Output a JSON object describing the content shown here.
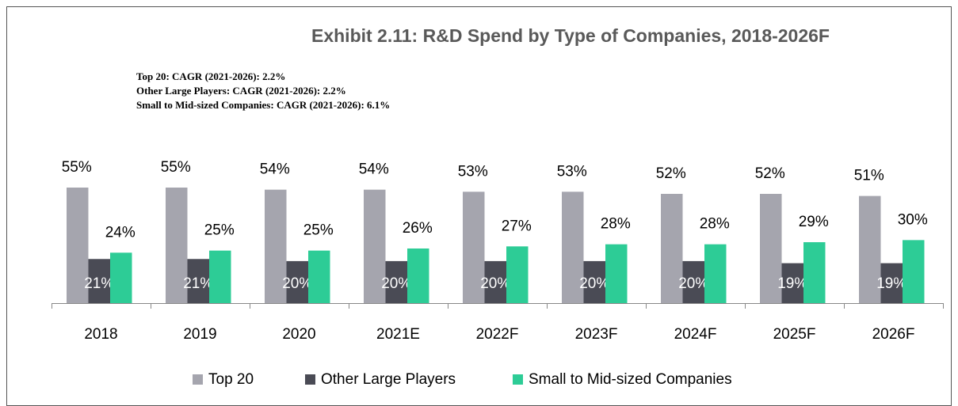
{
  "chart_data": {
    "type": "bar",
    "title": "Exhibit 2.11: R&D Spend by Type of Companies, 2018-2026F",
    "annotations": [
      "Top 20: CAGR (2021-2026): 2.2%",
      "Other Large Players: CAGR (2021-2026): 2.2%",
      "Small to Mid-sized Companies: CAGR (2021-2026): 6.1%"
    ],
    "categories": [
      "2018",
      "2019",
      "2020",
      "2021E",
      "2022F",
      "2023F",
      "2024F",
      "2025F",
      "2026F"
    ],
    "series": [
      {
        "name": "Top 20",
        "color": "#a5a5ae",
        "values": [
          55,
          55,
          54,
          54,
          53,
          53,
          52,
          52,
          51
        ],
        "value_labels": [
          "55%",
          "55%",
          "54%",
          "54%",
          "53%",
          "53%",
          "52%",
          "52%",
          "51%"
        ]
      },
      {
        "name": "Other Large Players",
        "color": "#4a4b55",
        "values": [
          21,
          21,
          20,
          20,
          20,
          20,
          20,
          19,
          19
        ],
        "value_labels": [
          "21%",
          "21%",
          "20%",
          "20%",
          "20%",
          "20%",
          "20%",
          "19%",
          "19%"
        ]
      },
      {
        "name": "Small to Mid-sized Companies",
        "color": "#2dcc96",
        "values": [
          24,
          25,
          25,
          26,
          27,
          28,
          28,
          29,
          30
        ],
        "value_labels": [
          "24%",
          "25%",
          "25%",
          "26%",
          "27%",
          "28%",
          "28%",
          "29%",
          "30%"
        ]
      }
    ],
    "legend": "bottom"
  }
}
